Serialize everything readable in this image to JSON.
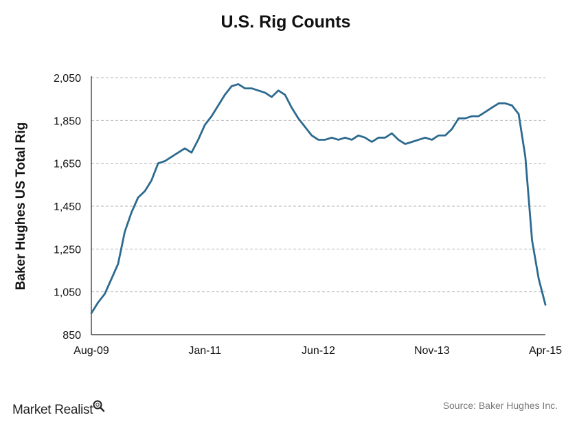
{
  "title": "U.S. Rig Counts",
  "source": "Source: Baker Hughes Inc.",
  "brand": "Market Realist",
  "brand_icon": "magnifier-icon",
  "colors": {
    "line": "#2c6a8f",
    "grid": "#b5b5b5",
    "axis": "#222222"
  },
  "chart_data": {
    "type": "line",
    "title": "U.S. Rig Counts",
    "xlabel": "",
    "ylabel": "Baker Hughes US Total Rig",
    "ylim": [
      850,
      2050
    ],
    "yticks": [
      850,
      1050,
      1250,
      1450,
      1650,
      1850,
      2050
    ],
    "ytick_labels": [
      "850",
      "1,050",
      "1,250",
      "1,450",
      "1,650",
      "1,850",
      "2,050"
    ],
    "xticks": [
      "Aug-09",
      "Jan-11",
      "Jun-12",
      "Nov-13",
      "Apr-15"
    ],
    "grid": "horizontal dashed",
    "legend": "none",
    "series": [
      {
        "x": [
          "2009-08",
          "2009-09",
          "2009-10",
          "2009-11",
          "2009-12",
          "2010-01",
          "2010-02",
          "2010-03",
          "2010-04",
          "2010-05",
          "2010-06",
          "2010-07",
          "2010-08",
          "2010-09",
          "2010-10",
          "2010-11",
          "2010-12",
          "2011-01",
          "2011-02",
          "2011-03",
          "2011-04",
          "2011-05",
          "2011-06",
          "2011-07",
          "2011-08",
          "2011-09",
          "2011-10",
          "2011-11",
          "2011-12",
          "2012-01",
          "2012-02",
          "2012-03",
          "2012-04",
          "2012-05",
          "2012-06",
          "2012-07",
          "2012-08",
          "2012-09",
          "2012-10",
          "2012-11",
          "2012-12",
          "2013-01",
          "2013-02",
          "2013-03",
          "2013-04",
          "2013-05",
          "2013-06",
          "2013-07",
          "2013-08",
          "2013-09",
          "2013-10",
          "2013-11",
          "2013-12",
          "2014-01",
          "2014-02",
          "2014-03",
          "2014-04",
          "2014-05",
          "2014-06",
          "2014-07",
          "2014-08",
          "2014-09",
          "2014-10",
          "2014-11",
          "2014-12",
          "2015-01",
          "2015-02",
          "2015-03",
          "2015-04"
        ],
        "values": [
          950,
          1000,
          1040,
          1110,
          1180,
          1330,
          1420,
          1490,
          1520,
          1570,
          1650,
          1660,
          1680,
          1700,
          1720,
          1700,
          1760,
          1830,
          1870,
          1920,
          1970,
          2010,
          2020,
          2000,
          2000,
          1990,
          1980,
          1960,
          1990,
          1970,
          1910,
          1860,
          1820,
          1780,
          1760,
          1760,
          1770,
          1760,
          1770,
          1760,
          1780,
          1770,
          1750,
          1770,
          1770,
          1790,
          1760,
          1740,
          1750,
          1760,
          1770,
          1760,
          1780,
          1780,
          1810,
          1860,
          1860,
          1870,
          1870,
          1890,
          1910,
          1930,
          1930,
          1920,
          1880,
          1680,
          1290,
          1110,
          990
        ]
      }
    ]
  }
}
